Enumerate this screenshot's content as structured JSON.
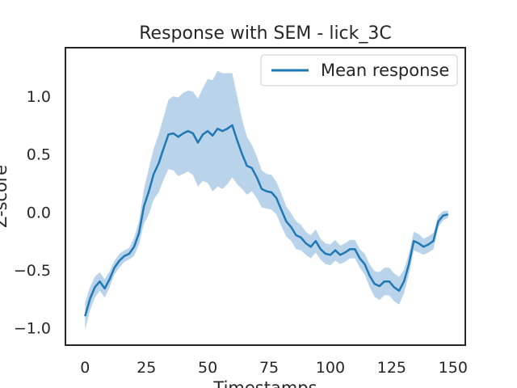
{
  "chart_data": {
    "type": "line",
    "title": "Response with SEM - lick_3C",
    "xlabel": "Timestamps",
    "ylabel": "Z-score",
    "xlim": [
      -8,
      155
    ],
    "ylim": [
      -1.15,
      1.42
    ],
    "xticks": [
      0,
      25,
      50,
      75,
      100,
      125,
      150
    ],
    "yticks": [
      -1.0,
      -0.5,
      0.0,
      0.5,
      1.0
    ],
    "ytick_labels": [
      "−1.0",
      "−0.5",
      "0.0",
      "0.5",
      "1.0"
    ],
    "grid": false,
    "legend": {
      "position": "upper right",
      "entries": [
        "Mean response"
      ]
    },
    "colors": {
      "line": "#1f77b4",
      "band": "#b9d4ea",
      "axes": "#262626"
    },
    "series": [
      {
        "name": "Mean response",
        "x": [
          0,
          2,
          4,
          6,
          8,
          10,
          12,
          14,
          16,
          18,
          20,
          22,
          24,
          26,
          28,
          30,
          32,
          34,
          36,
          38,
          40,
          42,
          44,
          46,
          48,
          50,
          52,
          54,
          56,
          58,
          60,
          62,
          64,
          66,
          68,
          70,
          72,
          74,
          76,
          78,
          80,
          82,
          84,
          86,
          88,
          90,
          92,
          94,
          96,
          98,
          100,
          102,
          104,
          106,
          108,
          110,
          112,
          114,
          116,
          118,
          120,
          122,
          124,
          126,
          128,
          130,
          132,
          134,
          136,
          138,
          140,
          142,
          144,
          146,
          148
        ],
        "mean": [
          -0.9,
          -0.75,
          -0.65,
          -0.6,
          -0.66,
          -0.58,
          -0.48,
          -0.42,
          -0.38,
          -0.36,
          -0.3,
          -0.18,
          0.05,
          0.18,
          0.33,
          0.42,
          0.55,
          0.67,
          0.68,
          0.65,
          0.68,
          0.7,
          0.68,
          0.6,
          0.67,
          0.7,
          0.66,
          0.72,
          0.7,
          0.72,
          0.75,
          0.62,
          0.5,
          0.4,
          0.38,
          0.3,
          0.2,
          0.18,
          0.17,
          0.12,
          0.02,
          -0.08,
          -0.13,
          -0.2,
          -0.22,
          -0.27,
          -0.3,
          -0.25,
          -0.32,
          -0.36,
          -0.37,
          -0.33,
          -0.37,
          -0.35,
          -0.32,
          -0.32,
          -0.4,
          -0.45,
          -0.55,
          -0.62,
          -0.64,
          -0.6,
          -0.6,
          -0.65,
          -0.68,
          -0.6,
          -0.45,
          -0.25,
          -0.27,
          -0.3,
          -0.28,
          -0.25,
          -0.08,
          -0.03,
          -0.02
        ],
        "sem": [
          0.12,
          0.1,
          0.09,
          0.08,
          0.08,
          0.07,
          0.06,
          0.06,
          0.05,
          0.05,
          0.08,
          0.1,
          0.15,
          0.2,
          0.22,
          0.25,
          0.27,
          0.3,
          0.32,
          0.34,
          0.35,
          0.35,
          0.36,
          0.38,
          0.4,
          0.45,
          0.48,
          0.5,
          0.5,
          0.48,
          0.45,
          0.38,
          0.3,
          0.25,
          0.2,
          0.18,
          0.16,
          0.15,
          0.15,
          0.14,
          0.14,
          0.13,
          0.12,
          0.12,
          0.11,
          0.1,
          0.1,
          0.1,
          0.09,
          0.09,
          0.09,
          0.09,
          0.08,
          0.08,
          0.08,
          0.08,
          0.08,
          0.09,
          0.1,
          0.11,
          0.12,
          0.12,
          0.12,
          0.12,
          0.12,
          0.1,
          0.09,
          0.08,
          0.08,
          0.07,
          0.07,
          0.07,
          0.05,
          0.04,
          0.03
        ]
      }
    ]
  }
}
